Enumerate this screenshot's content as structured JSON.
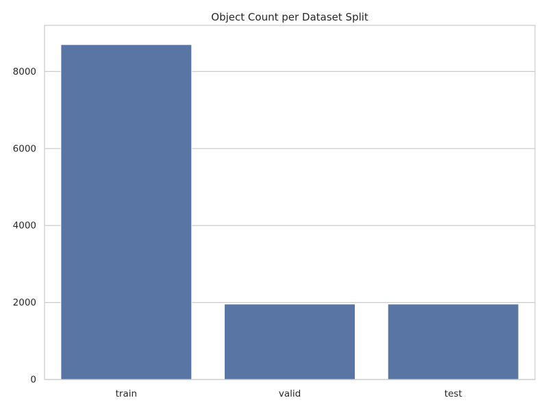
{
  "chart_data": {
    "type": "bar",
    "title": "Object Count per Dataset Split",
    "xlabel": "",
    "ylabel": "",
    "categories": [
      "train",
      "valid",
      "test"
    ],
    "values": [
      8700,
      1960,
      1960
    ],
    "ylim": [
      0,
      9200
    ],
    "yticks": [
      0,
      2000,
      4000,
      6000,
      8000
    ],
    "ytick_labels": [
      "0",
      "2000",
      "4000",
      "6000",
      "8000"
    ],
    "grid": "y",
    "legend": "none",
    "colors": {
      "bar": "#5975a4",
      "bar_edge": "#ffffff",
      "grid": "#cccccc",
      "axes_edge": "#cccccc",
      "background": "#ffffff",
      "text": "#262626"
    }
  }
}
